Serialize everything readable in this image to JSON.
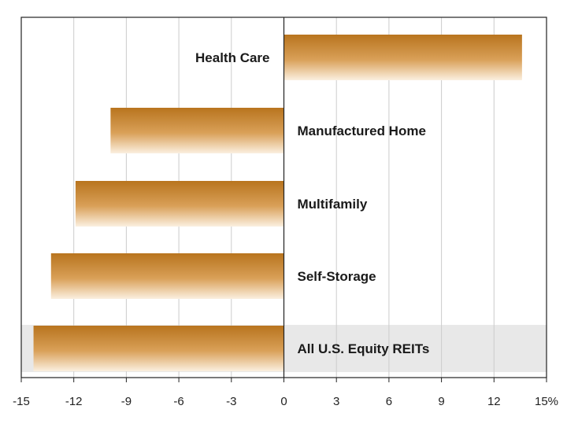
{
  "chart_data": {
    "type": "bar",
    "orientation": "horizontal",
    "categories": [
      "Health Care",
      "Manufactured Home",
      "Multifamily",
      "Self-Storage",
      "All U.S. Equity REITs"
    ],
    "values": [
      13.6,
      -9.9,
      -11.9,
      -13.3,
      -14.3
    ],
    "highlighted_category": "All U.S. Equity REITs",
    "xlim": [
      -15,
      15
    ],
    "xticks": [
      -15,
      -12,
      -9,
      -6,
      -3,
      0,
      3,
      6,
      9,
      12,
      15
    ],
    "xtick_labels": [
      "-15",
      "-12",
      "-9",
      "-6",
      "-3",
      "0",
      "3",
      "6",
      "9",
      "12",
      "15%"
    ],
    "grid": "vertical",
    "title": "",
    "xlabel": "",
    "ylabel": "",
    "colors": {
      "bar_top": "#b8741e",
      "bar_mid": "#d9a058",
      "bar_bottom": "#fbf0e0",
      "highlight_band": "#e8e8e8",
      "grid": "#cccccc",
      "axis": "#222222"
    }
  }
}
